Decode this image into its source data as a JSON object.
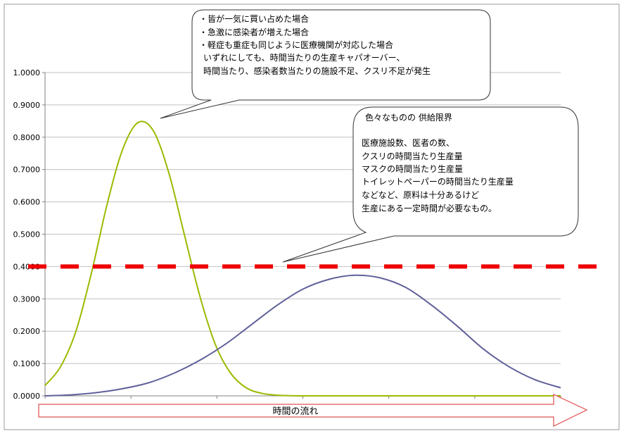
{
  "chart_data": {
    "type": "line",
    "ylim": [
      0,
      1
    ],
    "yticks": [
      "0.0000",
      "0.1000",
      "0.2000",
      "0.3000",
      "0.4000",
      "0.5000",
      "0.6000",
      "0.7000",
      "0.8000",
      "0.9000",
      "1.0000"
    ],
    "grid": true,
    "xlabel": "時間の流れ",
    "x_range": [
      0,
      100
    ],
    "series": [
      {
        "color": "#99bb00",
        "x": [
          0,
          3,
          6,
          9,
          12,
          15,
          18,
          21,
          24,
          27,
          30,
          33,
          36,
          39,
          42,
          45,
          50,
          55,
          60,
          70,
          80,
          90,
          100
        ],
        "y": [
          0.032,
          0.09,
          0.2,
          0.38,
          0.59,
          0.76,
          0.845,
          0.82,
          0.69,
          0.5,
          0.31,
          0.16,
          0.07,
          0.025,
          0.008,
          0.002,
          0,
          0,
          0,
          0,
          0,
          0,
          0
        ]
      },
      {
        "color": "#60609a",
        "x": [
          0,
          5,
          10,
          15,
          20,
          25,
          30,
          35,
          40,
          45,
          50,
          55,
          60,
          65,
          70,
          75,
          80,
          85,
          90,
          95,
          100
        ],
        "y": [
          0.0,
          0.003,
          0.01,
          0.022,
          0.04,
          0.07,
          0.11,
          0.16,
          0.22,
          0.28,
          0.33,
          0.36,
          0.373,
          0.365,
          0.335,
          0.28,
          0.215,
          0.145,
          0.09,
          0.05,
          0.025
        ]
      }
    ],
    "threshold": {
      "y": 0.4,
      "color": "#ee0000",
      "style": "dashed"
    },
    "annotations": [
      {
        "lines": [
          "・皆が一気に買い占めた場合",
          "・急激に感染者が増えた場合",
          "・軽症も重症も同じように医療機関が対応した場合",
          "いずれにしても、時間当たりの生産キャパオーバー、",
          "時間当たり、感染者数当たりの施設不足、クスリ不足が発生"
        ]
      },
      {
        "lines": [
          "色々なものの 供給限界",
          "",
          "医療施設数、医者の数、",
          "クスリの時間当たり生産量",
          "マスクの時間当たり生産量",
          "トイレットペーパーの時間当たり生産量",
          "などなど、原料は十分あるけど",
          "生産にある一定時間が必要なもの。"
        ]
      }
    ]
  }
}
